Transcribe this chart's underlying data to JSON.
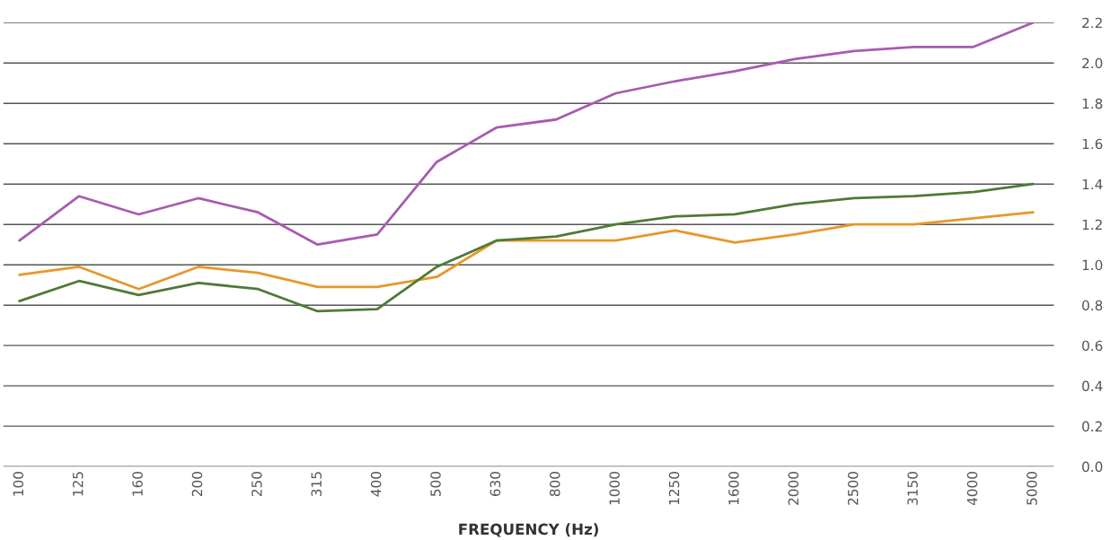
{
  "chart_data": {
    "type": "line",
    "xlabel": "FREQUENCY (Hz)",
    "categories": [
      "100",
      "125",
      "160",
      "200",
      "250",
      "315",
      "400",
      "500",
      "630",
      "800",
      "1000",
      "1250",
      "1600",
      "2000",
      "2500",
      "3150",
      "4000",
      "5000"
    ],
    "series": [
      {
        "color": "#a75bb0",
        "values": [
          1.12,
          1.34,
          1.25,
          1.33,
          1.26,
          1.1,
          1.15,
          1.51,
          1.68,
          1.72,
          1.85,
          1.91,
          1.96,
          2.02,
          2.06,
          2.08,
          2.08,
          2.2
        ]
      },
      {
        "color": "#e8962a",
        "values": [
          0.95,
          0.99,
          0.88,
          0.99,
          0.96,
          0.89,
          0.89,
          0.94,
          1.12,
          1.12,
          1.12,
          1.17,
          1.11,
          1.15,
          1.2,
          1.2,
          1.23,
          1.26
        ]
      },
      {
        "color": "#4e7a35",
        "values": [
          0.82,
          0.92,
          0.85,
          0.91,
          0.88,
          0.77,
          0.78,
          0.99,
          1.12,
          1.14,
          1.2,
          1.24,
          1.25,
          1.3,
          1.33,
          1.34,
          1.36,
          1.4
        ]
      }
    ],
    "ylim": [
      0,
      2.2
    ],
    "yticks": [
      {
        "value": 0,
        "label": "0.0"
      },
      {
        "value": 0.2,
        "label": "0.2"
      },
      {
        "value": 0.4,
        "label": "0.4"
      },
      {
        "value": 0.6,
        "label": "0.6"
      },
      {
        "value": 0.8,
        "label": "0.8"
      },
      {
        "value": 1.0,
        "label": "1.0"
      },
      {
        "value": 1.2,
        "label": "1.2"
      },
      {
        "value": 1.4,
        "label": "1.4"
      },
      {
        "value": 1.6,
        "label": "1.6"
      },
      {
        "value": 1.8,
        "label": "1.8"
      },
      {
        "value": 2.0,
        "label": "2.0"
      },
      {
        "value": 2.2,
        "label": "2.2"
      }
    ],
    "grid": "y",
    "marker": "none",
    "line_style": "solid"
  }
}
